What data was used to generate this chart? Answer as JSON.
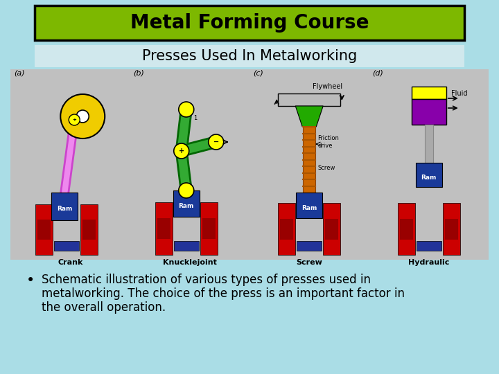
{
  "bg_color": "#aadde6",
  "title_text": "Metal Forming Course",
  "title_bg": "#7db800",
  "title_text_color": "#000000",
  "subtitle_text": "Presses Used In Metalworking",
  "subtitle_bg": "#d0e8ed",
  "diagram_bg": "#c0c0c0",
  "bullet_lines": [
    "Schematic illustration of various types of presses used in",
    "metalworking. The choice of the press is an important factor in",
    "the overall operation."
  ],
  "bullet_symbol": "•",
  "title_fontsize": 20,
  "subtitle_fontsize": 15,
  "bullet_fontsize": 12,
  "font_family": "DejaVu Sans",
  "red": "#cc0000",
  "dark_blue": "#1a3a99",
  "gold": "#f0cc00",
  "yellow": "#ffff00",
  "magenta": "#cc44cc",
  "green_dark": "#006600",
  "green_light": "#33aa33",
  "orange_brown": "#cc6600",
  "purple_cyl": "#8800aa",
  "light_gray": "#bbbbbb",
  "white": "#ffffff",
  "black": "#000000",
  "gray": "#888888"
}
